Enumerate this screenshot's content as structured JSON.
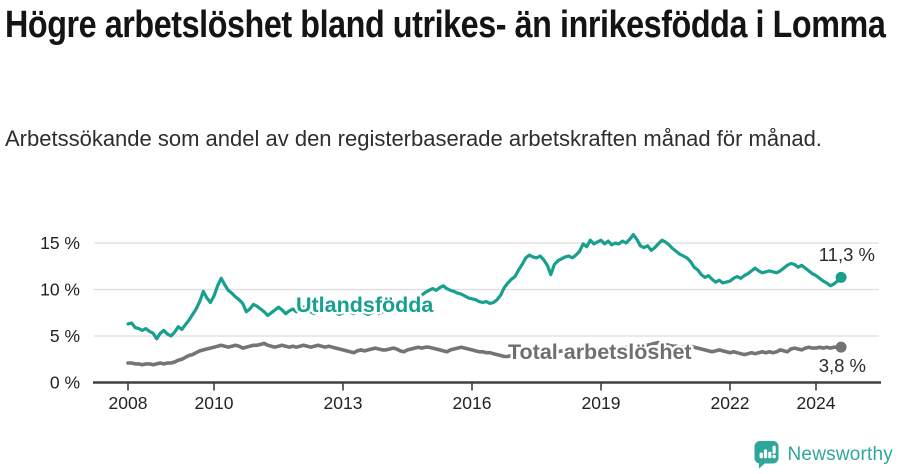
{
  "header": {
    "title": "Högre arbetslöshet bland utrikes- än inrikesfödda i Lomma",
    "subtitle": "Arbetssökande som andel av den registerbaserade arbetskraften månad för månad."
  },
  "footer": {
    "brand": "Newsworthy",
    "logo_icon": "newsworthy-speech-bubble-bar-chart-icon"
  },
  "colors": {
    "teal_line": "#17a08e",
    "gray_line": "#747474",
    "gray_label": "#6f6f6f",
    "grid": "#dddddd",
    "axis": "#404040",
    "tick_text": "#222222",
    "end_label_text": "#2b2b2b",
    "logo_teal": "#2ea79a"
  },
  "chart_data": {
    "type": "line",
    "title": "Högre arbetslöshet bland utrikes- än inrikesfödda i Lomma",
    "xlabel": "",
    "ylabel": "Arbetssökande som andel av den registerbaserade arbetskraften",
    "x_unit": "month",
    "x_start_year": 2008,
    "x_start_month": 1,
    "x_end_year": 2024,
    "x_end_month": 8,
    "xlim": [
      2007.2,
      2025.5
    ],
    "ylim": [
      0,
      17.5
    ],
    "grid": "horizontal",
    "legend_position": "inline-labels",
    "x_ticks": [
      2008,
      2010,
      2013,
      2016,
      2019,
      2022,
      2024
    ],
    "y_ticks": [
      {
        "value": 0,
        "label": "0 %"
      },
      {
        "value": 5,
        "label": "5 %"
      },
      {
        "value": 10,
        "label": "10 %"
      },
      {
        "value": 15,
        "label": "15 %"
      }
    ],
    "series": [
      {
        "name": "Utlandsfödda",
        "color": "#17a08e",
        "end_label": "11,3 %",
        "last_value": 11.3,
        "values": [
          6.3,
          6.4,
          5.9,
          5.8,
          5.6,
          5.8,
          5.5,
          5.3,
          4.7,
          5.3,
          5.6,
          5.2,
          5.0,
          5.4,
          6.0,
          5.7,
          6.2,
          6.7,
          7.3,
          7.9,
          8.7,
          9.8,
          9.1,
          8.6,
          9.3,
          10.4,
          11.2,
          10.5,
          9.9,
          9.6,
          9.2,
          8.9,
          8.5,
          7.6,
          7.9,
          8.4,
          8.2,
          7.9,
          7.6,
          7.2,
          7.5,
          7.8,
          8.1,
          7.8,
          7.4,
          7.7,
          7.9,
          7.6,
          7.8,
          8.1,
          7.9,
          7.6,
          7.4,
          7.7,
          8.0,
          7.8,
          7.5,
          7.7,
          7.5,
          7.3,
          7.5,
          7.8,
          7.6,
          7.4,
          7.6,
          7.8,
          7.5,
          7.3,
          7.5,
          7.7,
          7.4,
          7.6,
          7.8,
          7.6,
          7.9,
          8.1,
          7.8,
          7.7,
          7.9,
          8.2,
          8.6,
          9.0,
          9.4,
          9.7,
          9.9,
          10.1,
          9.9,
          10.2,
          10.4,
          10.1,
          9.9,
          9.8,
          9.6,
          9.5,
          9.3,
          9.1,
          9.0,
          8.9,
          8.7,
          8.6,
          8.7,
          8.5,
          8.6,
          8.9,
          9.4,
          10.2,
          10.7,
          11.1,
          11.4,
          12.1,
          12.7,
          13.4,
          13.7,
          13.5,
          13.4,
          13.6,
          13.2,
          12.6,
          11.6,
          12.7,
          13.1,
          13.3,
          13.5,
          13.6,
          13.4,
          13.7,
          14.1,
          14.9,
          14.6,
          15.3,
          14.9,
          15.1,
          15.3,
          14.9,
          15.2,
          14.8,
          15.0,
          14.9,
          15.2,
          15.0,
          15.4,
          15.9,
          15.4,
          14.7,
          14.5,
          14.7,
          14.2,
          14.5,
          14.9,
          15.3,
          15.1,
          14.8,
          14.4,
          14.1,
          13.8,
          13.6,
          13.4,
          13.0,
          12.4,
          12.1,
          11.6,
          11.3,
          11.5,
          11.1,
          10.8,
          11.0,
          10.7,
          10.8,
          10.9,
          11.2,
          11.4,
          11.2,
          11.5,
          11.7,
          12.0,
          12.3,
          12.0,
          11.8,
          11.9,
          12.0,
          11.9,
          11.8,
          12.0,
          12.3,
          12.6,
          12.8,
          12.7,
          12.4,
          12.6,
          12.3,
          12.0,
          11.7,
          11.5,
          11.2,
          10.9,
          10.7,
          10.4,
          10.6,
          10.9,
          11.3
        ]
      },
      {
        "name": "Total arbetslöshet",
        "color": "#747474",
        "end_label": "3,8 %",
        "last_value": 3.8,
        "values": [
          2.1,
          2.1,
          2.0,
          2.0,
          1.9,
          2.0,
          2.0,
          1.9,
          2.0,
          2.1,
          2.0,
          2.1,
          2.1,
          2.2,
          2.4,
          2.5,
          2.7,
          2.9,
          3.0,
          3.2,
          3.4,
          3.5,
          3.6,
          3.7,
          3.8,
          3.9,
          4.0,
          3.9,
          3.8,
          3.9,
          4.0,
          3.9,
          3.7,
          3.8,
          3.9,
          4.0,
          4.0,
          4.1,
          4.2,
          4.0,
          3.9,
          3.8,
          3.9,
          4.0,
          3.9,
          3.8,
          3.9,
          3.8,
          3.9,
          4.0,
          3.9,
          3.8,
          3.9,
          4.0,
          3.9,
          3.8,
          3.9,
          3.8,
          3.7,
          3.6,
          3.5,
          3.4,
          3.3,
          3.2,
          3.4,
          3.5,
          3.4,
          3.5,
          3.6,
          3.7,
          3.6,
          3.5,
          3.5,
          3.6,
          3.7,
          3.6,
          3.4,
          3.3,
          3.5,
          3.6,
          3.7,
          3.8,
          3.7,
          3.8,
          3.8,
          3.7,
          3.6,
          3.5,
          3.4,
          3.3,
          3.5,
          3.6,
          3.7,
          3.8,
          3.7,
          3.6,
          3.5,
          3.4,
          3.3,
          3.3,
          3.2,
          3.2,
          3.1,
          3.0,
          2.9,
          2.8,
          2.8,
          2.9,
          3.0,
          3.0,
          3.1,
          3.2,
          3.1,
          3.0,
          3.1,
          3.2,
          3.1,
          3.2,
          3.3,
          3.3,
          3.3,
          3.4,
          3.3,
          3.2,
          3.3,
          3.4,
          3.3,
          3.4,
          3.5,
          3.4,
          3.5,
          3.6,
          3.5,
          3.6,
          3.5,
          3.6,
          3.7,
          3.6,
          3.7,
          3.8,
          3.7,
          3.8,
          3.9,
          3.9,
          4.0,
          4.0,
          4.1,
          4.2,
          4.3,
          4.2,
          4.1,
          4.0,
          3.9,
          3.9,
          3.8,
          3.8,
          4.0,
          3.9,
          3.8,
          3.7,
          3.6,
          3.5,
          3.4,
          3.3,
          3.4,
          3.5,
          3.4,
          3.3,
          3.2,
          3.3,
          3.2,
          3.1,
          3.0,
          3.1,
          3.2,
          3.1,
          3.2,
          3.3,
          3.2,
          3.3,
          3.2,
          3.3,
          3.5,
          3.4,
          3.3,
          3.6,
          3.7,
          3.6,
          3.5,
          3.7,
          3.8,
          3.7,
          3.7,
          3.8,
          3.7,
          3.8,
          3.7,
          3.8,
          3.8,
          3.8
        ]
      }
    ]
  }
}
